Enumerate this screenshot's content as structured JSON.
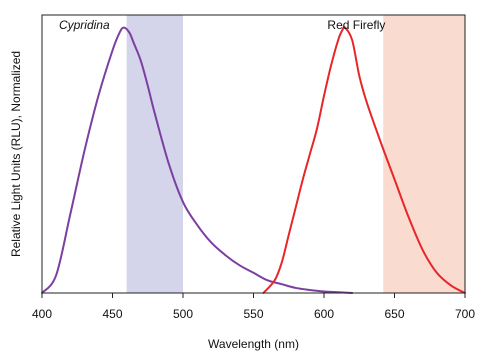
{
  "chart_data": {
    "type": "line",
    "xlabel": "Wavelength (nm)",
    "ylabel": "Relative Light Units (RLU), Normalized",
    "xlim": [
      400,
      700
    ],
    "ylim": [
      0,
      1.1
    ],
    "x_ticks": [
      400,
      450,
      500,
      550,
      600,
      650,
      700
    ],
    "x_tick_labels": [
      "400",
      "450",
      "500",
      "550",
      "600",
      "650",
      "700"
    ],
    "grid": false,
    "bands": [
      {
        "name": "blue-filter-band",
        "x_range": [
          460,
          500
        ],
        "color": "#d4d4ea"
      },
      {
        "name": "red-filter-band",
        "x_range": [
          642,
          700
        ],
        "color": "#fadbcf"
      }
    ],
    "series": [
      {
        "name": "Cypridina",
        "color": "#7b3fa0",
        "label_style": "italic",
        "x": [
          400,
          410,
          420,
          430,
          440,
          450,
          455,
          458,
          462,
          465,
          470,
          475,
          480,
          490,
          500,
          510,
          520,
          530,
          540,
          550,
          560,
          570,
          580,
          590,
          600,
          610,
          620
        ],
        "y": [
          0.0,
          0.07,
          0.31,
          0.56,
          0.78,
          0.96,
          1.03,
          1.05,
          1.03,
          0.99,
          0.92,
          0.82,
          0.71,
          0.51,
          0.36,
          0.27,
          0.2,
          0.15,
          0.11,
          0.08,
          0.05,
          0.035,
          0.02,
          0.012,
          0.006,
          0.003,
          0.0
        ]
      },
      {
        "name": "Red Firefly",
        "color": "#e8262a",
        "label_style": "normal",
        "x": [
          557,
          565,
          570,
          575,
          580,
          585,
          590,
          595,
          600,
          605,
          610,
          613,
          615,
          620,
          625,
          630,
          640,
          650,
          660,
          670,
          680,
          690,
          700
        ],
        "y": [
          0.0,
          0.05,
          0.12,
          0.23,
          0.34,
          0.45,
          0.55,
          0.65,
          0.78,
          0.9,
          1.0,
          1.04,
          1.05,
          1.0,
          0.86,
          0.76,
          0.6,
          0.45,
          0.3,
          0.17,
          0.08,
          0.03,
          0.0
        ]
      }
    ]
  }
}
